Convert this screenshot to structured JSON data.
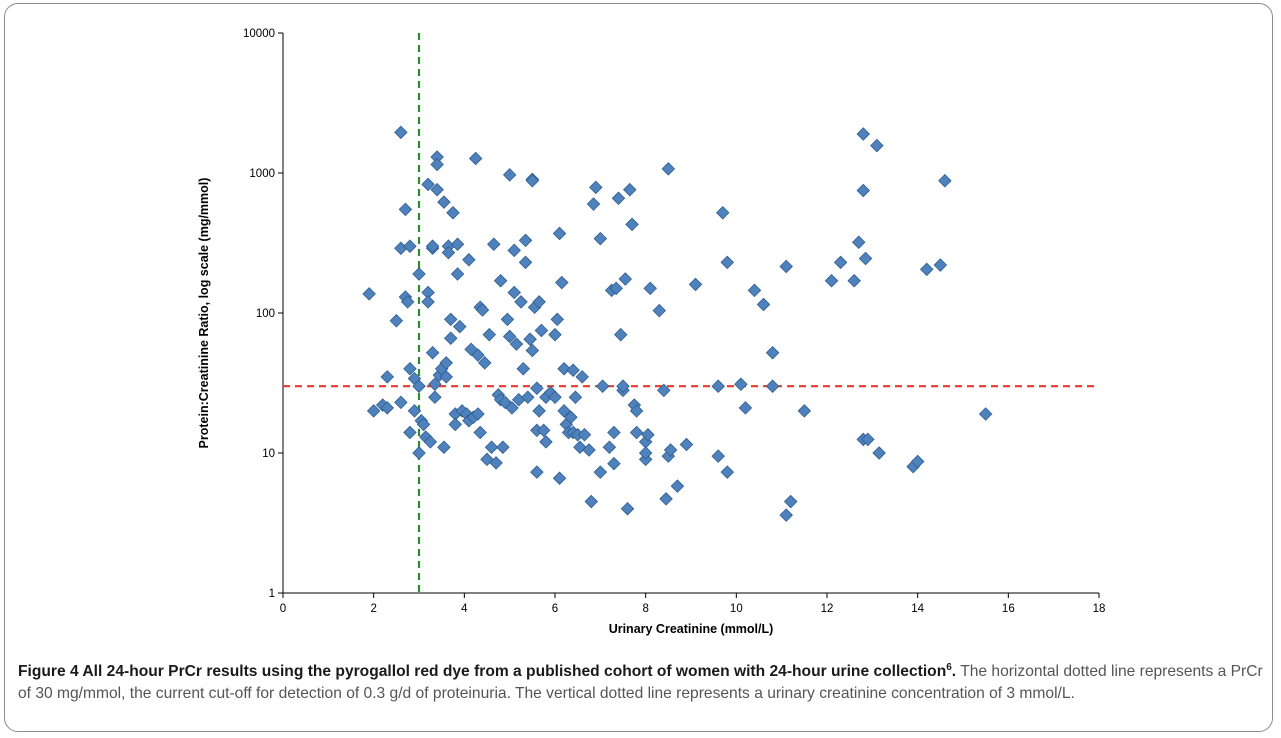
{
  "chart_data": {
    "type": "scatter",
    "xlabel": "Urinary Creatinine (mmol/L)",
    "ylabel": "Protein:Creatinine Ratio, log scale (mg/mmol)",
    "xlim": [
      0,
      18
    ],
    "ylim": [
      1,
      10000
    ],
    "yscale": "log",
    "x_ticks": [
      "0",
      "2",
      "4",
      "6",
      "8",
      "10",
      "12",
      "14",
      "16",
      "18"
    ],
    "y_ticks": [
      "1",
      "10",
      "100",
      "1000",
      "10000"
    ],
    "grid": false,
    "marker": "diamond",
    "marker_color": "#4f81bd",
    "reference_lines": [
      {
        "orientation": "horizontal",
        "value": 30,
        "color": "#e8392a",
        "style": "dashed"
      },
      {
        "orientation": "vertical",
        "value": 3,
        "color": "#2e8b2e",
        "style": "dashed"
      }
    ],
    "points": [
      [
        1.9,
        137
      ],
      [
        2.0,
        20
      ],
      [
        2.2,
        22
      ],
      [
        2.3,
        35
      ],
      [
        2.3,
        21
      ],
      [
        2.5,
        88
      ],
      [
        2.6,
        23
      ],
      [
        2.6,
        290
      ],
      [
        2.6,
        1950
      ],
      [
        2.7,
        130
      ],
      [
        2.7,
        550
      ],
      [
        2.75,
        120
      ],
      [
        2.8,
        40
      ],
      [
        2.8,
        14
      ],
      [
        2.8,
        300
      ],
      [
        2.9,
        34
      ],
      [
        2.9,
        20
      ],
      [
        3.0,
        190
      ],
      [
        3.0,
        10
      ],
      [
        3.0,
        30
      ],
      [
        3.05,
        17
      ],
      [
        3.1,
        16
      ],
      [
        3.15,
        13
      ],
      [
        3.2,
        140
      ],
      [
        3.2,
        120
      ],
      [
        3.2,
        830
      ],
      [
        3.25,
        12
      ],
      [
        3.3,
        290
      ],
      [
        3.3,
        300
      ],
      [
        3.3,
        52
      ],
      [
        3.35,
        31
      ],
      [
        3.35,
        25
      ],
      [
        3.4,
        1300
      ],
      [
        3.4,
        1150
      ],
      [
        3.4,
        760
      ],
      [
        3.45,
        36
      ],
      [
        3.5,
        40
      ],
      [
        3.55,
        11
      ],
      [
        3.55,
        620
      ],
      [
        3.6,
        44
      ],
      [
        3.6,
        35
      ],
      [
        3.65,
        300
      ],
      [
        3.65,
        270
      ],
      [
        3.7,
        90
      ],
      [
        3.7,
        66
      ],
      [
        3.75,
        520
      ],
      [
        3.8,
        19
      ],
      [
        3.8,
        16
      ],
      [
        3.85,
        190
      ],
      [
        3.85,
        310
      ],
      [
        3.9,
        80
      ],
      [
        3.95,
        20
      ],
      [
        4.05,
        19
      ],
      [
        4.1,
        240
      ],
      [
        4.1,
        17
      ],
      [
        4.15,
        55
      ],
      [
        4.2,
        18
      ],
      [
        4.25,
        1270
      ],
      [
        4.3,
        50
      ],
      [
        4.3,
        19
      ],
      [
        4.35,
        14
      ],
      [
        4.35,
        110
      ],
      [
        4.4,
        105
      ],
      [
        4.45,
        44
      ],
      [
        4.5,
        9
      ],
      [
        4.55,
        70
      ],
      [
        4.6,
        11
      ],
      [
        4.65,
        310
      ],
      [
        4.7,
        8.5
      ],
      [
        4.75,
        26
      ],
      [
        4.8,
        170
      ],
      [
        4.8,
        24
      ],
      [
        4.85,
        11
      ],
      [
        4.9,
        23
      ],
      [
        4.95,
        90
      ],
      [
        5.0,
        970
      ],
      [
        5.0,
        68
      ],
      [
        5.05,
        21
      ],
      [
        5.1,
        140
      ],
      [
        5.1,
        280
      ],
      [
        5.15,
        60
      ],
      [
        5.2,
        24
      ],
      [
        5.25,
        120
      ],
      [
        5.3,
        40
      ],
      [
        5.35,
        330
      ],
      [
        5.35,
        230
      ],
      [
        5.4,
        25
      ],
      [
        5.45,
        65
      ],
      [
        5.5,
        900
      ],
      [
        5.5,
        880
      ],
      [
        5.5,
        54
      ],
      [
        5.55,
        110
      ],
      [
        5.6,
        14.5
      ],
      [
        5.6,
        7.3
      ],
      [
        5.6,
        29
      ],
      [
        5.65,
        120
      ],
      [
        5.65,
        20
      ],
      [
        5.7,
        75
      ],
      [
        5.75,
        14.5
      ],
      [
        5.8,
        12
      ],
      [
        5.8,
        25
      ],
      [
        5.9,
        27
      ],
      [
        6.0,
        70
      ],
      [
        6.0,
        25
      ],
      [
        6.05,
        90
      ],
      [
        6.1,
        370
      ],
      [
        6.1,
        6.6
      ],
      [
        6.15,
        165
      ],
      [
        6.2,
        20
      ],
      [
        6.2,
        40
      ],
      [
        6.25,
        16
      ],
      [
        6.3,
        14
      ],
      [
        6.35,
        18
      ],
      [
        6.4,
        39
      ],
      [
        6.4,
        14
      ],
      [
        6.45,
        25
      ],
      [
        6.5,
        13.5
      ],
      [
        6.55,
        11
      ],
      [
        6.6,
        35
      ],
      [
        6.65,
        13.5
      ],
      [
        6.75,
        10.5
      ],
      [
        6.8,
        4.5
      ],
      [
        6.85,
        600
      ],
      [
        6.9,
        790
      ],
      [
        7.0,
        7.3
      ],
      [
        7.0,
        340
      ],
      [
        7.05,
        30
      ],
      [
        7.2,
        11
      ],
      [
        7.25,
        145
      ],
      [
        7.3,
        8.4
      ],
      [
        7.3,
        14
      ],
      [
        7.35,
        150
      ],
      [
        7.4,
        660
      ],
      [
        7.45,
        70
      ],
      [
        7.5,
        28
      ],
      [
        7.5,
        30
      ],
      [
        7.55,
        175
      ],
      [
        7.6,
        4.0
      ],
      [
        7.65,
        760
      ],
      [
        7.7,
        430
      ],
      [
        7.75,
        22
      ],
      [
        7.8,
        20
      ],
      [
        7.8,
        14
      ],
      [
        8.0,
        9
      ],
      [
        8.0,
        12
      ],
      [
        8.0,
        10
      ],
      [
        8.05,
        13.5
      ],
      [
        8.1,
        150
      ],
      [
        8.3,
        104
      ],
      [
        8.4,
        28
      ],
      [
        8.45,
        4.7
      ],
      [
        8.5,
        1070
      ],
      [
        8.5,
        9.5
      ],
      [
        8.55,
        10.5
      ],
      [
        8.7,
        5.8
      ],
      [
        8.9,
        11.5
      ],
      [
        9.1,
        160
      ],
      [
        9.6,
        9.5
      ],
      [
        9.6,
        30
      ],
      [
        9.7,
        520
      ],
      [
        9.8,
        7.3
      ],
      [
        9.8,
        230
      ],
      [
        10.1,
        31
      ],
      [
        10.2,
        21
      ],
      [
        10.4,
        145
      ],
      [
        10.6,
        115
      ],
      [
        10.8,
        52
      ],
      [
        10.8,
        30
      ],
      [
        11.1,
        3.6
      ],
      [
        11.1,
        215
      ],
      [
        11.2,
        4.5
      ],
      [
        11.5,
        20
      ],
      [
        12.1,
        170
      ],
      [
        12.3,
        230
      ],
      [
        12.6,
        170
      ],
      [
        12.7,
        320
      ],
      [
        12.8,
        1900
      ],
      [
        12.8,
        750
      ],
      [
        12.85,
        245
      ],
      [
        12.8,
        12.5
      ],
      [
        12.9,
        12.5
      ],
      [
        13.1,
        1570
      ],
      [
        13.15,
        10
      ],
      [
        13.9,
        8
      ],
      [
        14.0,
        8.7
      ],
      [
        14.2,
        205
      ],
      [
        14.5,
        220
      ],
      [
        14.6,
        880
      ],
      [
        15.5,
        19
      ]
    ]
  },
  "caption": {
    "lead": "Figure 4 All 24-hour PrCr results using the pyrogallol red dye from a published cohort of women with 24-hour urine collection",
    "lead_sup": "6",
    "lead_end": ".",
    "body": " The horizontal dotted line represents a PrCr of 30 mg/mmol, the current cut-off for detection of 0.3 g/d of proteinuria. The vertical dotted line represents a urinary creatinine concentration of 3 mmol/L."
  }
}
